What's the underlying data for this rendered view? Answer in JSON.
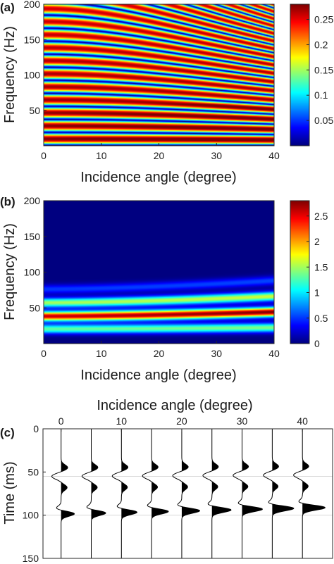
{
  "colors": {
    "colormap": [
      "#00007f",
      "#0000ff",
      "#007fff",
      "#00ffff",
      "#7fff7f",
      "#ffff00",
      "#ff7f00",
      "#ff0000",
      "#7f0000"
    ],
    "wiggle": "#000000",
    "background": "#ffffff"
  },
  "chart_data": [
    {
      "panel": "(a)",
      "type": "heatmap",
      "xlabel": "Incidence angle (degree)",
      "ylabel": "Frequency (Hz)",
      "xlim": [
        0,
        40
      ],
      "ylim": [
        0,
        200
      ],
      "xticks": [
        "0",
        "10",
        "20",
        "30",
        "40"
      ],
      "yticks": [
        "50",
        "100",
        "150",
        "200"
      ],
      "colorbar": {
        "min": 0,
        "max": 0.28,
        "ticks": [
          "0.05",
          "0.1",
          "0.15",
          "0.2",
          "0.25"
        ]
      },
      "pattern": {
        "description_values": "oscillating amplitude vs frequency, period ~18.5 Hz at 0 deg, bands curve to lower frequency with increasing angle",
        "base_period_hz": 18.5,
        "max_value": 0.28,
        "curvature": 0.35
      }
    },
    {
      "panel": "(b)",
      "type": "heatmap",
      "xlabel": "Incidence angle (degree)",
      "ylabel": "Frequency (Hz)",
      "xlim": [
        0,
        40
      ],
      "ylim": [
        0,
        200
      ],
      "xticks": [
        "0",
        "10",
        "20",
        "30",
        "40"
      ],
      "yticks": [
        "50",
        "100",
        "150",
        "200"
      ],
      "colorbar": {
        "min": 0,
        "max": 2.8,
        "ticks": [
          "0",
          "0.5",
          "1",
          "1.5",
          "2",
          "2.5"
        ]
      },
      "bands": [
        {
          "center_hz_at_0": 20,
          "center_hz_at_40": 22,
          "peak": 1.3
        },
        {
          "center_hz_at_0": 38,
          "center_hz_at_40": 44,
          "peak": 2.6
        },
        {
          "center_hz_at_0": 57,
          "center_hz_at_40": 66,
          "peak": 1.5
        },
        {
          "center_hz_at_0": 76,
          "center_hz_at_40": 88,
          "peak": 0.5
        }
      ]
    },
    {
      "panel": "(c)",
      "type": "line",
      "xlabel": "Incidence angle (degree)",
      "ylabel": "Time (ms)",
      "xlim": [
        -3,
        45
      ],
      "ylim": [
        150,
        0
      ],
      "xticks": [
        "0",
        "10",
        "20",
        "30",
        "40"
      ],
      "yticks": [
        "0",
        "50",
        "100",
        "150"
      ],
      "trace_angles": [
        0,
        5,
        10,
        15,
        20,
        25,
        30,
        35,
        40
      ],
      "event_times_ms": [
        45,
        55,
        68,
        93,
        98
      ],
      "event_amplitudes_at_0": [
        1.0,
        -1.4,
        0.9,
        -1.0,
        2.2
      ],
      "last_event_amplitude_at_40": 3.6,
      "reference_lines_ms": [
        55,
        100
      ]
    }
  ],
  "labels": {
    "panel_a": "(a)",
    "panel_b": "(b)",
    "panel_c": "(c)",
    "a_xlabel": "Incidence angle (degree)",
    "a_ylabel": "Frequency (Hz)",
    "b_xlabel": "Incidence angle (degree)",
    "b_ylabel": "Frequency (Hz)",
    "c_xlabel": "Incidence angle (degree)",
    "c_ylabel": "Time (ms)"
  }
}
